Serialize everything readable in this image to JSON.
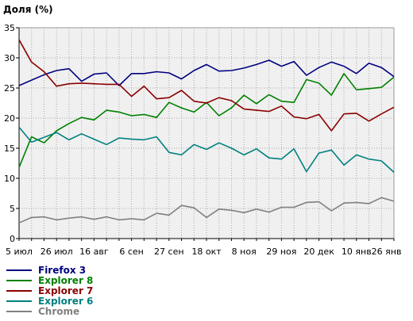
{
  "chart_data": {
    "type": "line",
    "title": "Доля (%)",
    "xlabel": "",
    "ylabel": "",
    "ylim": [
      0,
      35
    ],
    "y_ticks": [
      0,
      5,
      10,
      15,
      20,
      25,
      30,
      35
    ],
    "grid": true,
    "x_tick_labels": [
      "5 июл",
      "26 июл",
      "16 авг",
      "6 сен",
      "27 сен",
      "18 окт",
      "8 ноя",
      "29 ноя",
      "20 дек",
      "10 янв",
      "26 янв"
    ],
    "x_tick_positions": [
      0,
      3,
      6,
      9,
      12,
      15,
      18,
      21,
      24,
      27,
      29.4
    ],
    "x": [
      0,
      1,
      2,
      3,
      4,
      5,
      6,
      7,
      8,
      9,
      10,
      11,
      12,
      13,
      14,
      15,
      16,
      17,
      18,
      19,
      20,
      21,
      22,
      23,
      24,
      25,
      26,
      27,
      28,
      29,
      30
    ],
    "legend_position": "bottom-left",
    "series": [
      {
        "name": "Firefox 3",
        "color": "#000080",
        "values": [
          25.4,
          26.3,
          27.2,
          27.9,
          28.2,
          26.1,
          27.3,
          27.5,
          25.4,
          27.4,
          27.4,
          27.7,
          27.5,
          26.5,
          27.9,
          28.9,
          27.8,
          27.9,
          28.3,
          28.9,
          29.6,
          28.6,
          29.4,
          27.1,
          28.4,
          29.3,
          28.6,
          27.4,
          29.1,
          28.4,
          26.9
        ]
      },
      {
        "name": "Explorer 8",
        "color": "#008000",
        "values": [
          11.8,
          16.9,
          15.9,
          17.9,
          19.1,
          20.1,
          19.7,
          21.3,
          21.0,
          20.4,
          20.6,
          20.1,
          22.6,
          21.7,
          21.0,
          22.6,
          20.4,
          21.7,
          23.8,
          22.4,
          23.9,
          22.8,
          22.6,
          26.4,
          25.8,
          23.8,
          27.4,
          24.7,
          24.9,
          25.1,
          26.8
        ]
      },
      {
        "name": "Explorer 7",
        "color": "#8b0000",
        "values": [
          33.0,
          29.3,
          27.7,
          25.3,
          25.7,
          25.8,
          25.7,
          25.6,
          25.6,
          23.6,
          25.3,
          23.2,
          23.4,
          24.6,
          22.8,
          22.5,
          23.4,
          22.9,
          21.5,
          21.3,
          21.1,
          22.0,
          20.2,
          19.9,
          20.6,
          17.9,
          20.7,
          20.8,
          19.5,
          20.7,
          21.8
        ]
      },
      {
        "name": "Explorer 6",
        "color": "#008080",
        "values": [
          18.5,
          16.0,
          16.8,
          17.6,
          16.4,
          17.4,
          16.5,
          15.6,
          16.7,
          16.5,
          16.4,
          16.9,
          14.3,
          13.9,
          15.6,
          14.8,
          15.9,
          15.0,
          13.9,
          14.9,
          13.4,
          13.2,
          14.9,
          11.1,
          14.2,
          14.7,
          12.2,
          13.9,
          13.2,
          12.9,
          11.0
        ]
      },
      {
        "name": "Chrome",
        "color": "#808080",
        "values": [
          2.6,
          3.5,
          3.6,
          3.1,
          3.4,
          3.6,
          3.2,
          3.6,
          3.1,
          3.3,
          3.1,
          4.2,
          3.9,
          5.5,
          5.1,
          3.5,
          4.9,
          4.7,
          4.3,
          4.9,
          4.4,
          5.2,
          5.2,
          6.0,
          6.1,
          4.6,
          5.9,
          6.0,
          5.8,
          6.8,
          6.2
        ]
      }
    ]
  }
}
